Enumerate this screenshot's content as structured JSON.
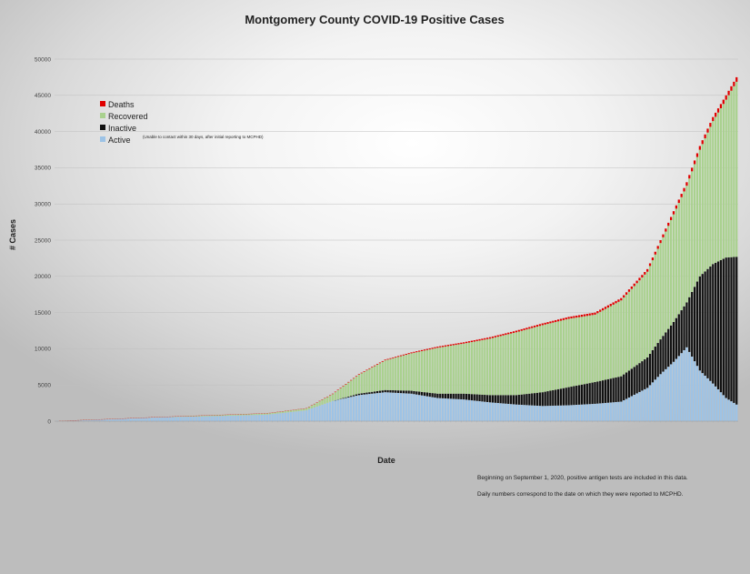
{
  "chart_data": {
    "type": "bar",
    "stacked": true,
    "title": "Montgomery County COVID-19 Positive Cases",
    "xlabel": "Date",
    "ylabel": "# Cases",
    "ylim": [
      0,
      50000
    ],
    "yticks": [
      0,
      5000,
      10000,
      15000,
      20000,
      25000,
      30000,
      35000,
      40000,
      45000,
      50000
    ],
    "grid": true,
    "legend_position": "top-left",
    "legend": [
      {
        "name": "Deaths",
        "color": "#e00000"
      },
      {
        "name": "Recovered",
        "color": "#a9d18e"
      },
      {
        "name": "Inactive",
        "color": "#111111"
      },
      {
        "name": "Active",
        "color": "#9dc3e6"
      }
    ],
    "legend_note": "(Unable to contact within 30 days, after initial reporting to MCPHD)",
    "notes": [
      "Beginning on September 1, 2020, positive antigen tests are included in this data.",
      "Daily numbers correspond to the date on which they were reported to MCPHD."
    ],
    "bar_count": 260,
    "series_keyframes": {
      "bar_index": [
        0,
        20,
        40,
        60,
        80,
        95,
        105,
        115,
        125,
        135,
        145,
        155,
        165,
        175,
        185,
        195,
        205,
        215,
        225,
        230,
        235,
        240,
        245,
        250,
        255,
        259
      ],
      "total": [
        30,
        300,
        600,
        850,
        1100,
        1800,
        3800,
        6500,
        8500,
        9500,
        10300,
        10900,
        11600,
        12500,
        13500,
        14400,
        15000,
        17000,
        21000,
        25000,
        29000,
        33000,
        38000,
        42000,
        45000,
        47500
      ],
      "active": [
        30,
        280,
        550,
        700,
        900,
        1500,
        2800,
        3600,
        4000,
        3800,
        3200,
        3000,
        2600,
        2300,
        2100,
        2200,
        2400,
        2700,
        4600,
        6500,
        8200,
        10200,
        7000,
        5200,
        3200,
        2300
      ],
      "inactive": [
        0,
        0,
        0,
        0,
        0,
        0,
        0,
        200,
        300,
        400,
        600,
        800,
        1000,
        1300,
        1900,
        2500,
        3000,
        3500,
        4200,
        4800,
        5500,
        6200,
        13000,
        16500,
        19400,
        20400
      ],
      "deaths": [
        0,
        5,
        10,
        20,
        30,
        40,
        60,
        80,
        100,
        130,
        160,
        180,
        200,
        220,
        240,
        260,
        290,
        320,
        360,
        400,
        440,
        480,
        520,
        560,
        600,
        630
      ]
    }
  }
}
